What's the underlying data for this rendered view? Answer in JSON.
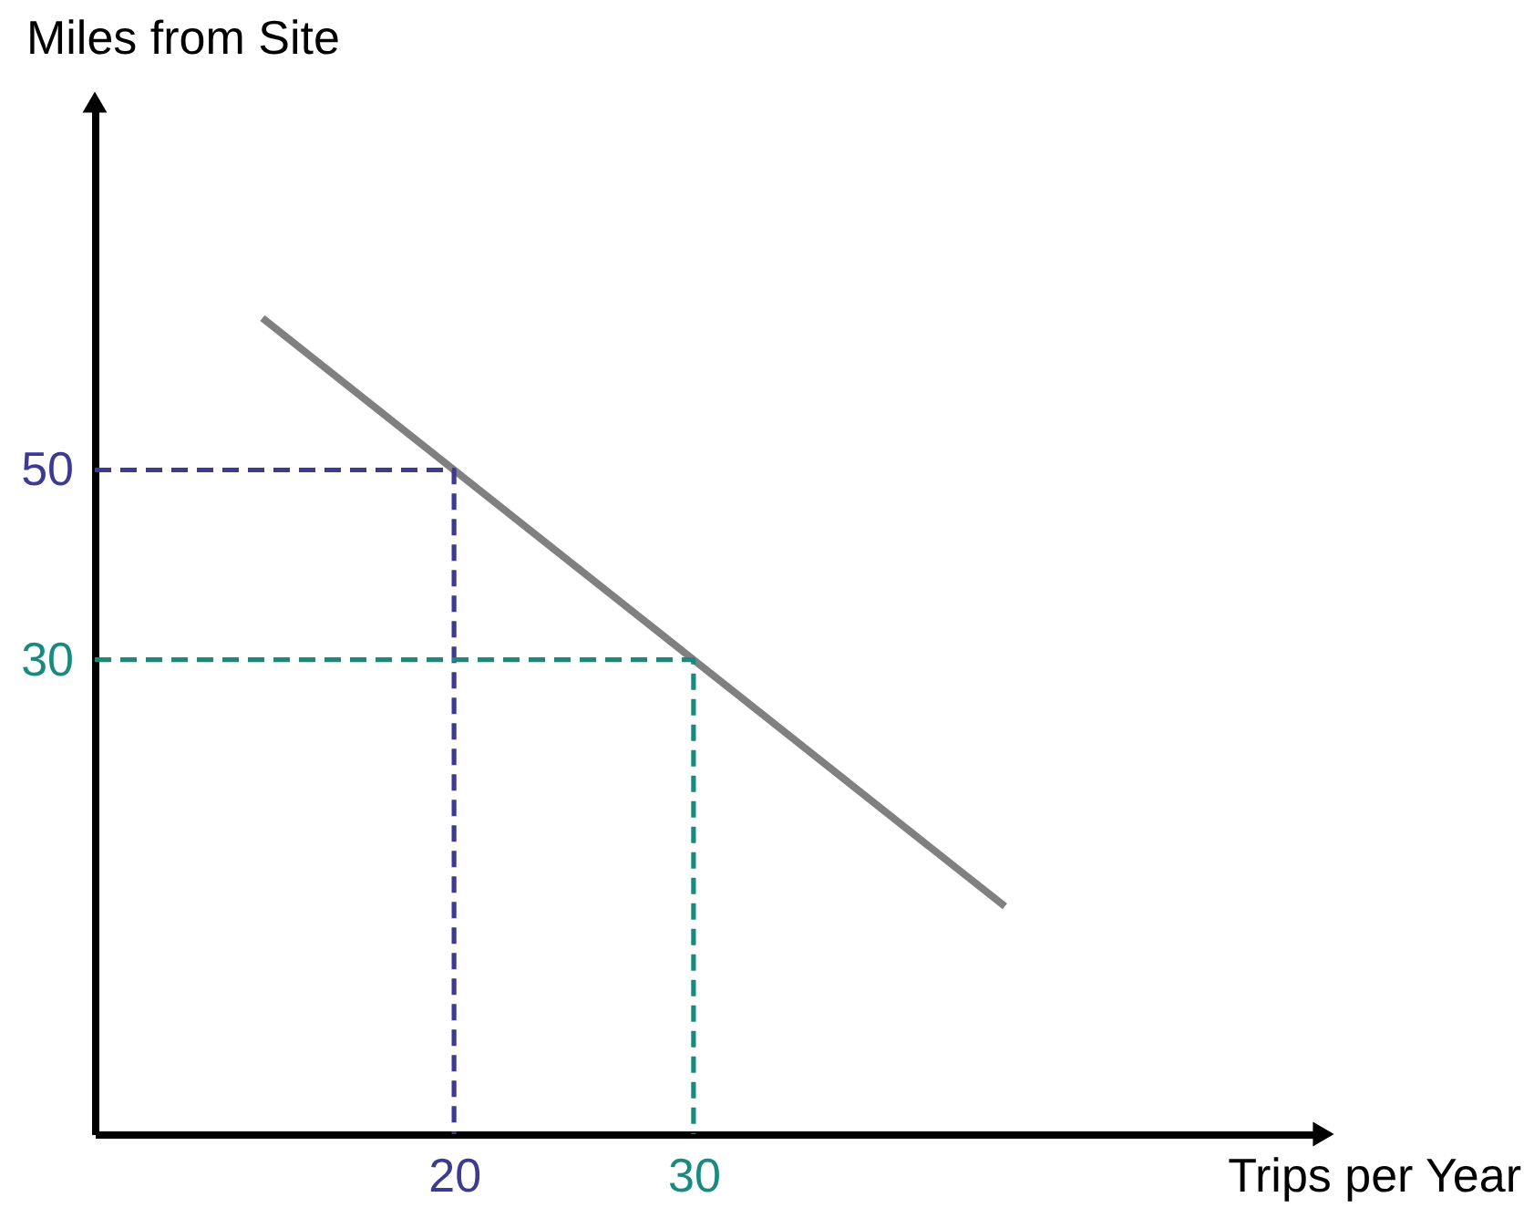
{
  "chart_data": {
    "type": "line",
    "xlabel": "Trips per Year",
    "ylabel": "Miles from Site",
    "xlim": [
      5,
      56
    ],
    "ylim": [
      -20,
      88
    ],
    "xticks": [
      20,
      30
    ],
    "yticks": [
      30,
      50
    ],
    "grid": false,
    "series": [
      {
        "x": [
          12,
          43
        ],
        "values": [
          66,
          4
        ],
        "color": "#808080",
        "line_style": "solid"
      },
      {
        "x": [
          5,
          20,
          20
        ],
        "values": [
          50,
          50,
          -20
        ],
        "color": "#3d3a91",
        "line_style": "dashed"
      },
      {
        "x": [
          5,
          30,
          30
        ],
        "values": [
          30,
          30,
          -20
        ],
        "color": "#1a8a7e",
        "line_style": "dashed"
      }
    ]
  }
}
